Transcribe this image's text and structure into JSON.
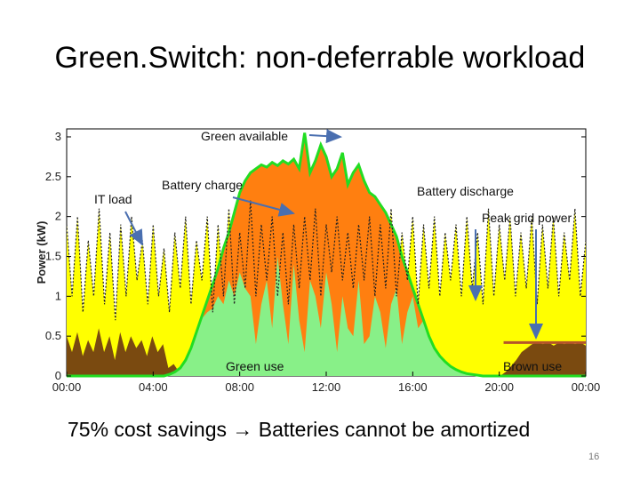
{
  "slide": {
    "title": "Green.Switch: non-deferrable workload",
    "caption": "75% cost savings → Batteries cannot be amortized",
    "page_number": "16"
  },
  "chart_data": {
    "type": "area",
    "ylabel": "Power (kW)",
    "ylim": [
      0,
      3.1
    ],
    "y_ticks": [
      0,
      0.5,
      1,
      1.5,
      2,
      2.5,
      3
    ],
    "y_tick_labels": [
      "0",
      "0.5",
      "1",
      "1.5",
      "2",
      "2.5",
      "3"
    ],
    "x_range_hours": [
      0,
      24
    ],
    "x_ticks": [
      0,
      4,
      8,
      12,
      16,
      20,
      24
    ],
    "x_tick_labels": [
      "00:00",
      "04:00",
      "08:00",
      "12:00",
      "16:00",
      "20:00",
      "00:00"
    ],
    "annotations": [
      {
        "text": "Green available"
      },
      {
        "text": "IT load"
      },
      {
        "text": "Battery charge"
      },
      {
        "text": "Battery discharge"
      },
      {
        "text": "Peak grid power"
      },
      {
        "text": "Green use"
      },
      {
        "text": "Brown use"
      }
    ],
    "series": [
      {
        "key": "it_load",
        "color": "#ffff00"
      },
      {
        "key": "brown_use",
        "color": "#7a4a10"
      },
      {
        "key": "battery_charge",
        "color": "#ff7f10"
      },
      {
        "key": "green_available",
        "color": "#22dd22"
      },
      {
        "key": "green_use",
        "color": "#88f088"
      }
    ],
    "peak_grid_power_kw": 0.42,
    "it_load_kw": [
      1.9,
      1.0,
      2.0,
      0.8,
      1.7,
      1.0,
      2.1,
      0.9,
      1.8,
      0.7,
      1.9,
      1.0,
      2.0,
      1.2,
      1.7,
      0.9,
      1.9,
      1.0,
      1.6,
      0.8,
      1.8,
      1.1,
      2.0,
      0.9,
      1.7,
      1.2,
      2.0,
      0.8,
      1.9,
      1.0,
      2.1,
      0.9,
      1.8,
      1.1,
      2.2,
      1.0,
      1.9,
      1.2,
      2.0,
      1.0,
      1.8,
      0.9,
      1.9,
      1.1,
      2.0,
      1.2,
      2.1,
      1.0,
      1.9,
      1.3,
      2.0,
      1.2,
      1.8,
      1.1,
      1.9,
      1.2,
      2.0,
      1.0,
      1.9,
      1.1,
      2.1,
      1.0,
      1.8,
      1.2,
      2.0,
      0.9,
      1.9,
      1.1,
      2.0,
      1.0,
      1.8,
      1.2,
      1.9,
      1.0,
      2.0,
      1.1,
      1.8,
      0.9,
      2.1,
      1.0,
      1.9,
      1.2,
      2.0,
      1.0,
      1.8,
      1.1,
      2.0,
      0.9,
      1.9,
      1.1,
      2.0,
      1.0,
      1.8,
      1.2,
      2.1,
      1.0,
      1.7
    ],
    "brown_use_kw": [
      0.5,
      0.3,
      0.55,
      0.25,
      0.45,
      0.3,
      0.6,
      0.3,
      0.5,
      0.2,
      0.55,
      0.3,
      0.5,
      0.35,
      0.45,
      0.25,
      0.5,
      0.3,
      0.4,
      0.1,
      0.15,
      0.05,
      0.02,
      0,
      0,
      0,
      0,
      0,
      0,
      0,
      0,
      0,
      0,
      0,
      0,
      0,
      0,
      0,
      0,
      0,
      0,
      0,
      0,
      0,
      0,
      0,
      0,
      0,
      0,
      0,
      0,
      0,
      0,
      0,
      0,
      0,
      0,
      0,
      0,
      0,
      0,
      0,
      0,
      0,
      0,
      0,
      0,
      0,
      0,
      0,
      0,
      0,
      0,
      0,
      0,
      0,
      0,
      0,
      0,
      0,
      0,
      0,
      0.05,
      0.12,
      0.2,
      0.3,
      0.35,
      0.4,
      0.42,
      0.4,
      0.42,
      0.38,
      0.42,
      0.4,
      0.42,
      0.4,
      0.42,
      0.38
    ],
    "green_available_kw": [
      0,
      0,
      0,
      0,
      0,
      0,
      0,
      0,
      0,
      0,
      0,
      0,
      0,
      0,
      0,
      0,
      0,
      0,
      0,
      0.02,
      0.05,
      0.1,
      0.2,
      0.35,
      0.55,
      0.75,
      0.95,
      1.15,
      1.35,
      1.6,
      1.8,
      2.05,
      2.3,
      2.45,
      2.55,
      2.6,
      2.65,
      2.62,
      2.68,
      2.64,
      2.7,
      2.66,
      2.72,
      2.6,
      3.05,
      2.55,
      2.7,
      2.9,
      2.75,
      2.5,
      2.6,
      2.8,
      2.4,
      2.55,
      2.65,
      2.45,
      2.3,
      2.25,
      2.15,
      2.05,
      1.9,
      1.75,
      1.5,
      1.3,
      1.1,
      0.9,
      0.7,
      0.5,
      0.35,
      0.25,
      0.18,
      0.12,
      0.08,
      0.05,
      0.03,
      0.02,
      0.01,
      0,
      0,
      0,
      0,
      0,
      0,
      0,
      0,
      0,
      0,
      0,
      0,
      0,
      0,
      0,
      0,
      0,
      0,
      0,
      0
    ],
    "green_use_kw": [
      0,
      0,
      0,
      0,
      0,
      0,
      0,
      0,
      0,
      0,
      0,
      0,
      0,
      0,
      0,
      0,
      0,
      0,
      0,
      0.02,
      0.05,
      0.1,
      0.2,
      0.35,
      0.55,
      0.72,
      0.8,
      0.85,
      1.0,
      0.9,
      1.2,
      1.0,
      1.3,
      1.1,
      1.0,
      0.4,
      0.9,
      1.2,
      0.6,
      1.5,
      0.9,
      0.4,
      1.4,
      0.7,
      0.3,
      1.2,
      1.0,
      0.6,
      1.3,
      0.9,
      0.3,
      1.0,
      0.6,
      0.5,
      1.2,
      0.4,
      0.5,
      1.0,
      0.8,
      0.35,
      0.9,
      1.1,
      0.4,
      0.8,
      1.0,
      0.6,
      0.7,
      0.5,
      0.35,
      0.25,
      0.18,
      0.12,
      0.08,
      0.05,
      0.03,
      0.02,
      0.01,
      0,
      0,
      0,
      0,
      0,
      0,
      0,
      0,
      0,
      0,
      0,
      0,
      0,
      0,
      0,
      0,
      0,
      0,
      0,
      0
    ]
  }
}
